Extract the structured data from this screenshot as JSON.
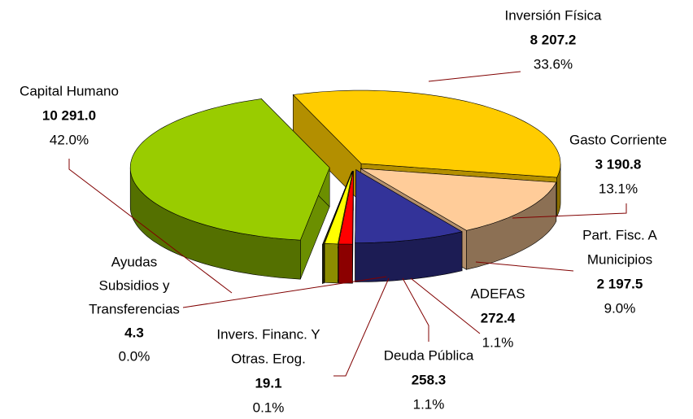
{
  "chart_data": {
    "type": "pie3d",
    "categories": [
      [
        "Inversión Física"
      ],
      [
        "Gasto Corriente"
      ],
      [
        "Part. Fisc. A",
        "Municipios"
      ],
      [
        "ADEFAS"
      ],
      [
        "Deuda Pública"
      ],
      [
        "Invers. Financ. Y",
        "Otras. Erog."
      ],
      [
        "Ayudas",
        "Subsidios y",
        "Transferencias"
      ],
      [
        "Capital Humano"
      ]
    ],
    "values": [
      8207.2,
      3190.8,
      2197.5,
      272.4,
      258.3,
      19.1,
      4.3,
      10291.0
    ],
    "value_labels": [
      "8 207.2",
      "3 190.8",
      "2 197.5",
      "272.4",
      "258.3",
      "19.1",
      "4.3",
      "10 291.0"
    ],
    "percents": [
      33.6,
      13.1,
      9.0,
      1.1,
      1.1,
      0.1,
      0.0,
      42.0
    ],
    "percent_labels": [
      "33.6%",
      "13.1%",
      "9.0%",
      "1.1%",
      "1.1%",
      "0.1%",
      "0.0%",
      "42.0%"
    ],
    "colors": [
      "#ffcc00",
      "#ffcc99",
      "#333399",
      "#ff0000",
      "#ffff00",
      "#808000",
      "#996680",
      "#99cc00"
    ]
  }
}
